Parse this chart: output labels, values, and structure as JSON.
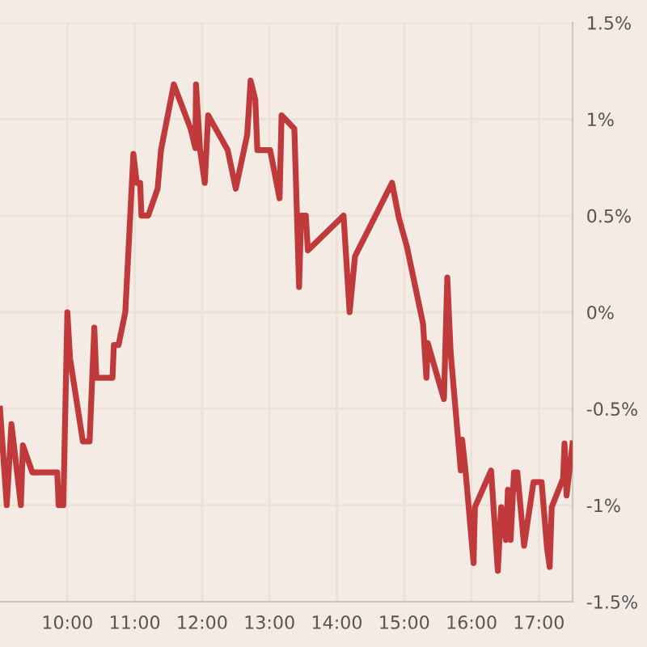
{
  "chart_data": {
    "type": "line",
    "x": [
      9.0,
      9.1,
      9.17,
      9.31,
      9.34,
      9.48,
      9.85,
      9.87,
      9.94,
      10.0,
      10.04,
      10.23,
      10.33,
      10.4,
      10.43,
      10.67,
      10.69,
      10.76,
      10.86,
      10.98,
      11.03,
      11.08,
      11.1,
      11.2,
      11.34,
      11.39,
      11.58,
      11.83,
      11.9,
      11.91,
      11.97,
      12.04,
      12.09,
      12.38,
      12.5,
      12.67,
      12.72,
      12.79,
      12.82,
      13.01,
      13.15,
      13.18,
      13.37,
      13.44,
      13.47,
      13.54,
      13.57,
      14.1,
      14.19,
      14.27,
      14.82,
      14.92,
      15.04,
      15.28,
      15.33,
      15.35,
      15.59,
      15.64,
      15.69,
      15.84,
      15.86,
      15.91,
      16.03,
      16.05,
      16.29,
      16.39,
      16.44,
      16.51,
      16.54,
      16.58,
      16.63,
      16.68,
      16.78,
      16.92,
      17.04,
      17.12,
      17.16,
      17.19,
      17.36,
      17.38,
      17.41,
      17.5
    ],
    "series": [
      {
        "color": "#c0393b",
        "values": [
          -0.5,
          -1.0,
          -0.58,
          -1.0,
          -0.69,
          -0.83,
          -0.83,
          -1.0,
          -1.0,
          0.0,
          -0.24,
          -0.67,
          -0.67,
          -0.08,
          -0.34,
          -0.34,
          -0.17,
          -0.17,
          0.0,
          0.82,
          0.67,
          0.67,
          0.5,
          0.5,
          0.64,
          0.84,
          1.18,
          0.95,
          0.85,
          1.18,
          0.84,
          0.67,
          1.02,
          0.84,
          0.64,
          0.92,
          1.2,
          1.1,
          0.84,
          0.84,
          0.59,
          1.02,
          0.95,
          0.13,
          0.5,
          0.5,
          0.32,
          0.5,
          0.0,
          0.29,
          0.67,
          0.49,
          0.34,
          -0.06,
          -0.34,
          -0.16,
          -0.45,
          0.18,
          -0.21,
          -0.82,
          -0.66,
          -0.82,
          -1.3,
          -1.01,
          -0.82,
          -1.34,
          -1.01,
          -1.18,
          -0.92,
          -1.18,
          -0.83,
          -0.83,
          -1.21,
          -0.88,
          -0.88,
          -1.22,
          -1.32,
          -1.01,
          -0.86,
          -0.68,
          -0.95,
          -0.68
        ]
      }
    ],
    "xlim": [
      9,
      17.5
    ],
    "xticks": [
      {
        "value": 10,
        "label": "10:00"
      },
      {
        "value": 11,
        "label": "11:00"
      },
      {
        "value": 12,
        "label": "12:00"
      },
      {
        "value": 13,
        "label": "13:00"
      },
      {
        "value": 14,
        "label": "14:00"
      },
      {
        "value": 15,
        "label": "15:00"
      },
      {
        "value": 16,
        "label": "16:00"
      },
      {
        "value": 17,
        "label": "17:00"
      }
    ],
    "ylim": [
      -1.5,
      1.5
    ],
    "yticks": [
      {
        "value": -1.5,
        "label": "-1.5%"
      },
      {
        "value": -1,
        "label": "-1%"
      },
      {
        "value": -0.5,
        "label": "-0.5%"
      },
      {
        "value": 0,
        "label": "0%"
      },
      {
        "value": 0.5,
        "label": "0.5%"
      },
      {
        "value": 1,
        "label": "1%"
      },
      {
        "value": 1.5,
        "label": "1.5%"
      }
    ],
    "grid": true,
    "line_style": "solid",
    "marker": "none"
  }
}
